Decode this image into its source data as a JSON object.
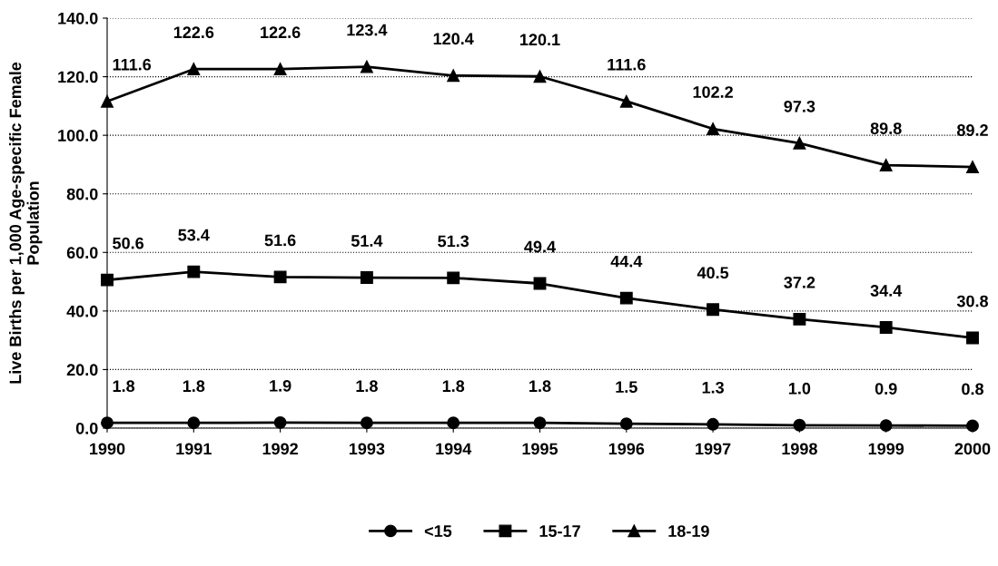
{
  "chart_data": {
    "type": "line",
    "ylabel": "Live Births per 1,000 Age-specific Female\nPopulation",
    "categories": [
      "1990",
      "1991",
      "1992",
      "1993",
      "1994",
      "1995",
      "1996",
      "1997",
      "1998",
      "1999",
      "2000"
    ],
    "series": [
      {
        "name": "<15",
        "color": "#000000",
        "marker": "circle",
        "values": [
          1.8,
          1.8,
          1.9,
          1.8,
          1.8,
          1.8,
          1.5,
          1.3,
          1.0,
          0.9,
          0.8
        ],
        "value_labels": [
          "1.8",
          "1.8",
          "1.9",
          "1.8",
          "1.8",
          "1.8",
          "1.5",
          "1.3",
          "1.0",
          "0.9",
          "0.8"
        ]
      },
      {
        "name": "15-17",
        "color": "#000000",
        "marker": "square",
        "values": [
          50.6,
          53.4,
          51.6,
          51.4,
          51.3,
          49.4,
          44.4,
          40.5,
          37.2,
          34.4,
          30.8
        ],
        "value_labels": [
          "50.6",
          "53.4",
          "51.6",
          "51.4",
          "51.3",
          "49.4",
          "44.4",
          "40.5",
          "37.2",
          "34.4",
          "30.8"
        ]
      },
      {
        "name": "18-19",
        "color": "#000000",
        "marker": "triangle",
        "values": [
          111.6,
          122.6,
          122.6,
          123.4,
          120.4,
          120.1,
          111.6,
          102.2,
          97.3,
          89.8,
          89.2
        ],
        "value_labels": [
          "111.6",
          "122.6",
          "122.6",
          "123.4",
          "120.4",
          "120.1",
          "111.6",
          "102.2",
          "97.3",
          "89.8",
          "89.2"
        ]
      }
    ],
    "ylim": [
      0,
      140
    ],
    "yticks": [
      {
        "value": 0,
        "label": "0.0"
      },
      {
        "value": 20,
        "label": "20.0"
      },
      {
        "value": 40,
        "label": "40.0"
      },
      {
        "value": 60,
        "label": "60.0"
      },
      {
        "value": 80,
        "label": "80.0"
      },
      {
        "value": 100,
        "label": "100.0"
      },
      {
        "value": 120,
        "label": "120.0"
      },
      {
        "value": 140,
        "label": "140.0"
      }
    ],
    "grid": "y",
    "legend": "bottom",
    "line_style": "solid"
  }
}
